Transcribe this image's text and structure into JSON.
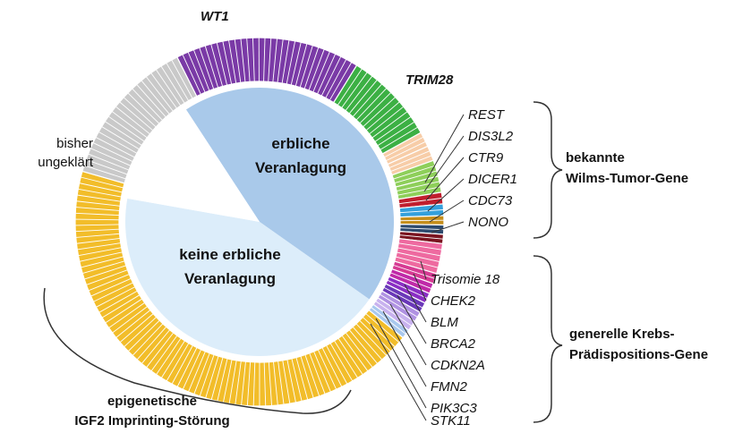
{
  "chart_data": {
    "type": "pie",
    "inner": {
      "slices": [
        {
          "label": "erbliche Veranlagung",
          "value": 44,
          "color": "#a9c9ea"
        },
        {
          "label": "keine erbliche Veranlagung",
          "value": 43,
          "color": "#dcedfa"
        },
        {
          "label": "",
          "value": 13,
          "color": "#ffffff"
        }
      ]
    },
    "outer_ring": {
      "segments": [
        {
          "label": "WT1",
          "value": 16,
          "color": "#7a3aa6"
        },
        {
          "label": "TRIM28",
          "value": 8,
          "color": "#3cb044"
        },
        {
          "label": "REST",
          "value": 1.3,
          "color": "#f7cda8"
        },
        {
          "label": "DIS3L2",
          "value": 1.3,
          "color": "#f7cda8"
        },
        {
          "label": "CTR9",
          "value": 1.4,
          "color": "#8ecf5a"
        },
        {
          "label": "DICER1",
          "value": 1.4,
          "color": "#8ecf5a"
        },
        {
          "label": "CDC73",
          "value": 1,
          "color": "#c01f2e"
        },
        {
          "label": "NONO",
          "value": 1,
          "color": "#34a0dc"
        },
        {
          "label": "",
          "value": 0.8,
          "color": "#c68e1a"
        },
        {
          "label": "",
          "value": 0.8,
          "color": "#2d4a6e"
        },
        {
          "label": "",
          "value": 0.8,
          "color": "#7a1420"
        },
        {
          "label": "Trisomie 18",
          "value": 2.6,
          "color": "#ee6aa0"
        },
        {
          "label": "CHEK2",
          "value": 0.9,
          "color": "#d63b93"
        },
        {
          "label": "BLM",
          "value": 0.9,
          "color": "#c02aa8"
        },
        {
          "label": "BRCA2",
          "value": 0.9,
          "color": "#8a2ec4"
        },
        {
          "label": "CDKN2A",
          "value": 0.9,
          "color": "#6a38b8"
        },
        {
          "label": "FMN2",
          "value": 0.9,
          "color": "#b092e2"
        },
        {
          "label": "PIK3C3",
          "value": 0.9,
          "color": "#c8b2ee"
        },
        {
          "label": "STK11",
          "value": 0.8,
          "color": "#a8c8ee"
        },
        {
          "label": "IGF2",
          "value": 43,
          "color": "#f2bd2a"
        },
        {
          "label": "bisher ungeklärt",
          "value": 13,
          "color": "#c9c9c9"
        }
      ]
    },
    "annotations": {
      "center_top_line1": "erbliche",
      "center_top_line2": "Veranlagung",
      "center_bottom_line1": "keine erbliche",
      "center_bottom_line2": "Veranlagung",
      "unexplained_line1": "bisher",
      "unexplained_line2": "ungeklärt",
      "group_wilms_line1": "bekannte",
      "group_wilms_line2": "Wilms-Tumor-Gene",
      "group_cancer_line1": "generelle Krebs-",
      "group_cancer_line2": "Prädispositions-Gene",
      "group_epi_line1": "epigenetische",
      "group_epi_line2": "IGF2 Imprinting-Störung"
    }
  }
}
